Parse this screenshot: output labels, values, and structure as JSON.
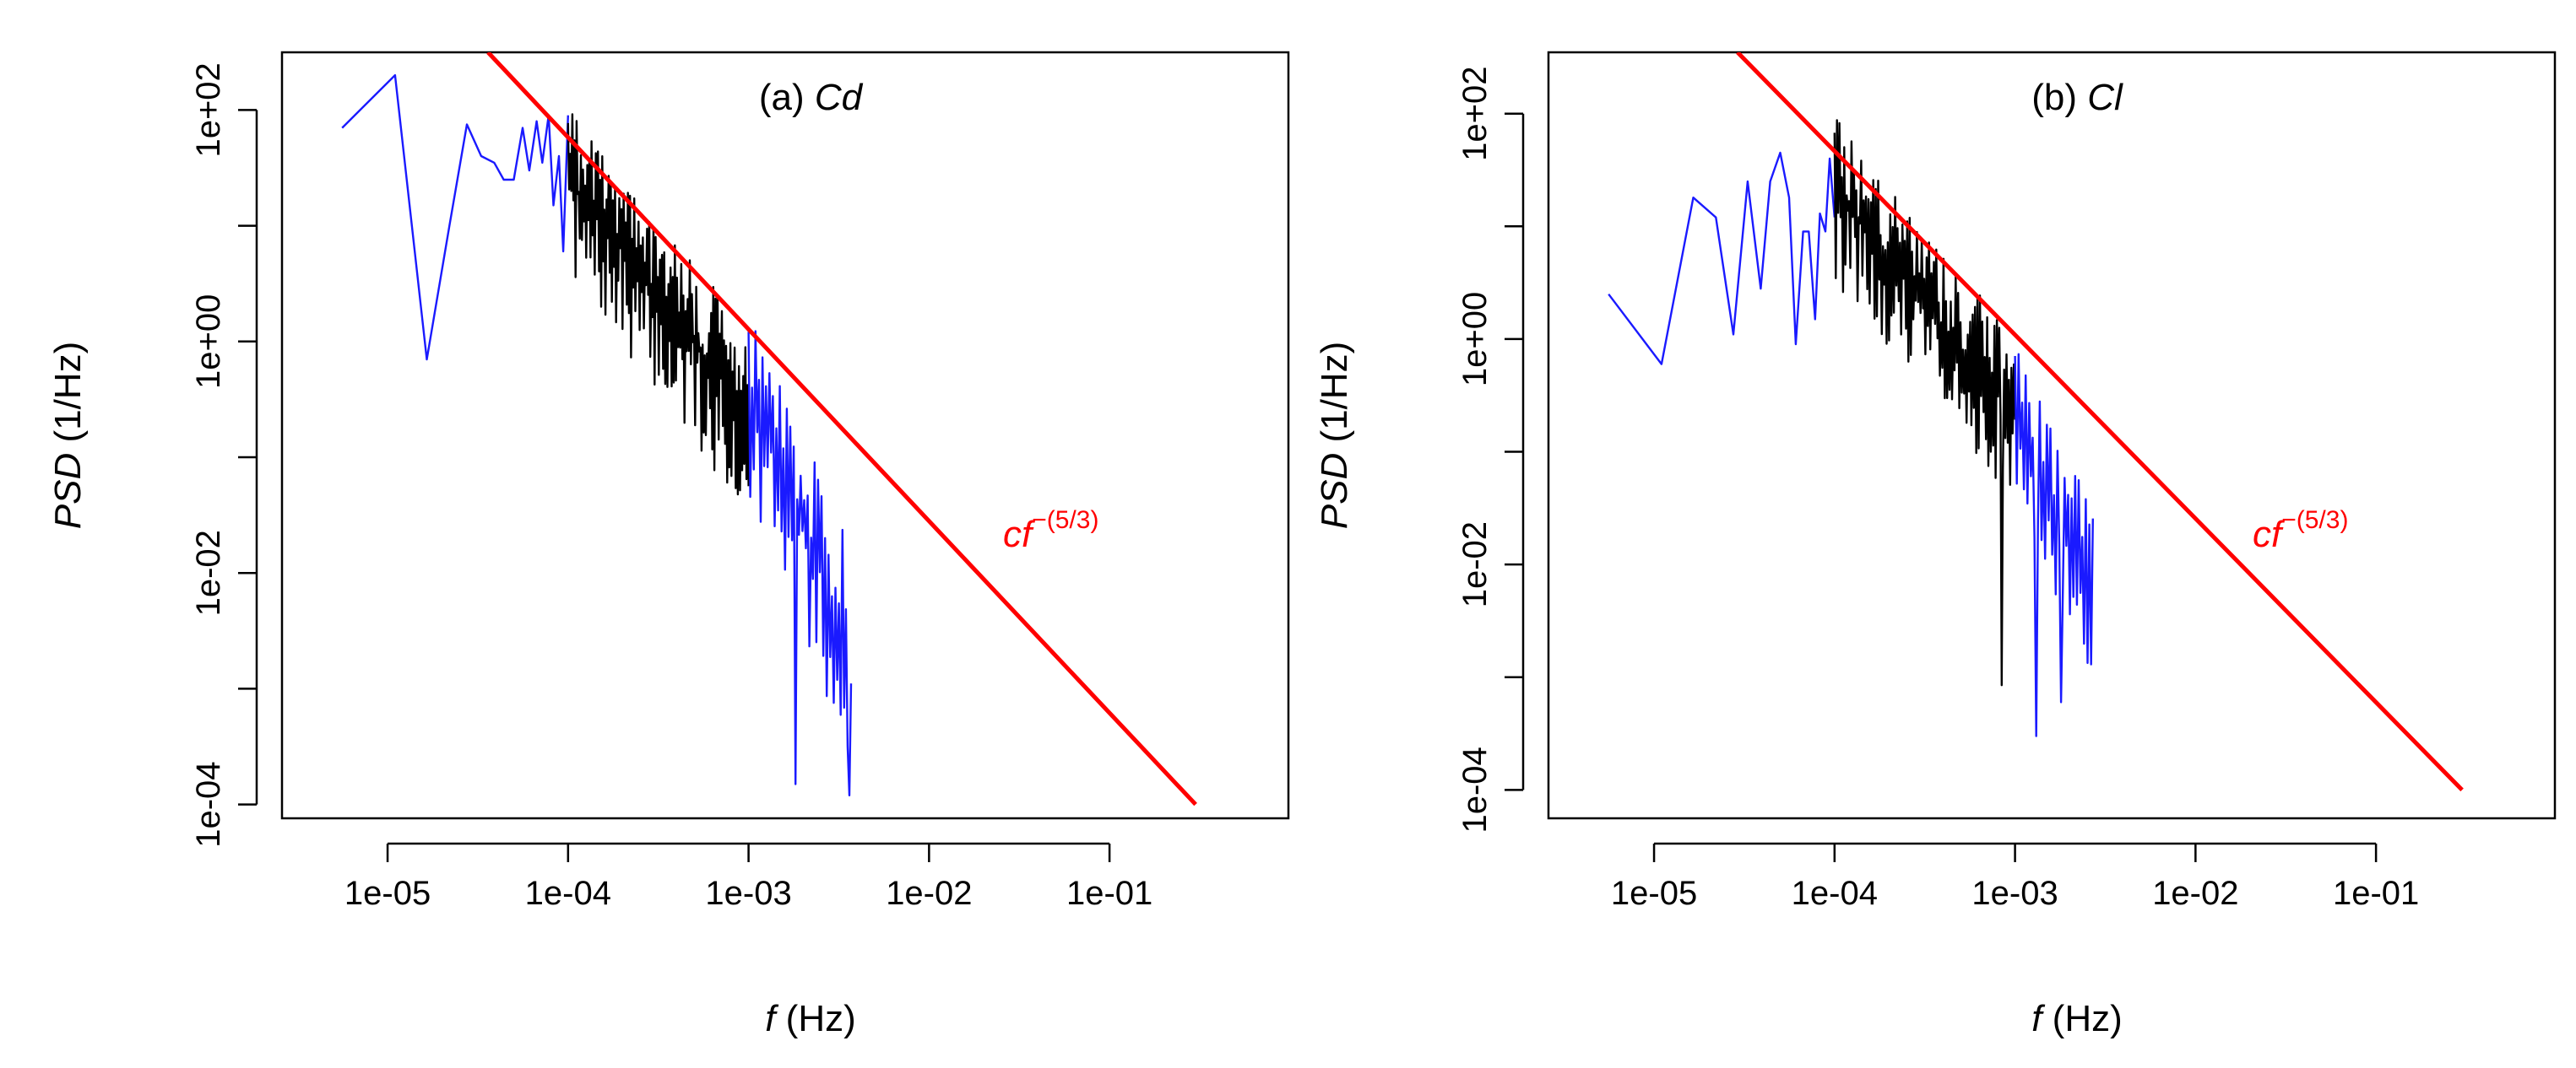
{
  "figure": {
    "panels": [
      "a",
      "b"
    ]
  },
  "chart_data": [
    {
      "id": "a",
      "type": "line",
      "scale": "log-log",
      "title_prefix": "(a) ",
      "title_var": "Cd",
      "xlabel_var": "f",
      "xlabel_unit": " (Hz)",
      "ylabel_var": "PSD",
      "ylabel_unit": " (1/Hz)",
      "xlim": [
        2.6e-06,
        0.98
      ],
      "ylim": [
        7.6e-05,
        315
      ],
      "x_ticks": [
        1e-05,
        0.0001,
        0.001,
        0.01,
        0.1
      ],
      "x_tick_labels": [
        "1e-05",
        "1e-04",
        "1e-03",
        "1e-02",
        "1e-01"
      ],
      "y_ticks": [
        0.0001,
        0.001,
        0.01,
        0.1,
        1,
        10,
        100
      ],
      "y_tick_labels": [
        "1e-04",
        "",
        "1e-02",
        "",
        "1e+00",
        "",
        "1e+02"
      ],
      "fit_label_base": "cf",
      "fit_label_exp": "−(5/3)",
      "fit_label_at": [
        0.03,
        0.025
      ],
      "colors": {
        "low": "#1a1aff",
        "mid": "#000000",
        "high": "#1a1aff",
        "fit": "#ff0000"
      },
      "series": [
        {
          "name": "low-frequency (blue)",
          "color": "#1a1aff",
          "x": [
            5.6e-06,
            1.1e-05,
            1.65e-05,
            2.2e-05,
            2.75e-05,
            3.3e-05,
            3.9e-05,
            4.4e-05,
            5e-05,
            5.6e-05,
            6.1e-05,
            6.7e-05,
            7.2e-05,
            7.8e-05,
            8.3e-05,
            8.9e-05,
            9.4e-05,
            0.0001
          ],
          "y": [
            70,
            200,
            0.7,
            10,
            75,
            40,
            35,
            25,
            25,
            70,
            30,
            80,
            35,
            90,
            15,
            40,
            6,
            90
          ]
        },
        {
          "name": "mid-frequency (black)",
          "color": "#000000",
          "x_start": 0.0001,
          "x_end": 0.001,
          "count": 170,
          "ymax": [
            110,
            1.3
          ],
          "ymin": [
            4,
            0.03
          ],
          "seed": 7
        },
        {
          "name": "high-frequency (blue)",
          "color": "#1a1aff",
          "x_start": 0.001,
          "x_end": 0.0037,
          "count": 60,
          "ymax": [
            1.8,
            0.02
          ],
          "ymin": [
            0.05,
            0.00015
          ],
          "seed": 19,
          "deep_dips": [
            [
              0.0018,
              0.00015
            ],
            [
              0.0036,
              0.00012
            ]
          ]
        },
        {
          "name": "cf^-(5/3) fit",
          "color": "#ff0000",
          "x": [
            3.6e-05,
            0.3
          ],
          "y": [
            315,
            0.0001
          ]
        }
      ]
    },
    {
      "id": "b",
      "type": "line",
      "scale": "log-log",
      "title_prefix": "(b) ",
      "title_var": "Cl",
      "xlabel_var": "f",
      "xlabel_unit": " (Hz)",
      "ylabel_var": "PSD",
      "ylabel_unit": " (1/Hz)",
      "xlim": [
        2.6e-06,
        0.98
      ],
      "ylim": [
        5.6e-05,
        350
      ],
      "x_ticks": [
        1e-05,
        0.0001,
        0.001,
        0.01,
        0.1
      ],
      "x_tick_labels": [
        "1e-05",
        "1e-04",
        "1e-03",
        "1e-02",
        "1e-01"
      ],
      "y_ticks": [
        0.0001,
        0.001,
        0.01,
        0.1,
        1,
        10,
        100
      ],
      "y_tick_labels": [
        "1e-04",
        "",
        "1e-02",
        "",
        "1e+00",
        "",
        "1e+02"
      ],
      "fit_label_base": "cf",
      "fit_label_exp": "−(5/3)",
      "fit_label_at": [
        0.03,
        0.025
      ],
      "colors": {
        "low": "#1a1aff",
        "mid": "#000000",
        "high": "#1a1aff",
        "fit": "#ff0000"
      },
      "series": [
        {
          "name": "low-frequency (blue)",
          "color": "#1a1aff",
          "x": [
            5.6e-06,
            1.1e-05,
            1.65e-05,
            2.2e-05,
            2.75e-05,
            3.3e-05,
            3.9e-05,
            4.4e-05,
            5e-05,
            5.6e-05,
            6.1e-05,
            6.7e-05,
            7.2e-05,
            7.8e-05,
            8.3e-05,
            8.9e-05,
            9.4e-05,
            0.0001
          ],
          "y": [
            2.5,
            0.6,
            18,
            12,
            1.1,
            25,
            2.8,
            25,
            45,
            18,
            0.9,
            9,
            9,
            1.5,
            13,
            9,
            40,
            12
          ]
        },
        {
          "name": "mid-frequency (black)",
          "color": "#000000",
          "x_start": 0.0001,
          "x_end": 0.001,
          "count": 150,
          "ymax": [
            100,
            1.0
          ],
          "ymin": [
            3,
            0.03
          ],
          "seed": 31,
          "deep_dips": [
            [
              0.00085,
              0.00085
            ]
          ]
        },
        {
          "name": "high-frequency (blue)",
          "color": "#1a1aff",
          "x_start": 0.001,
          "x_end": 0.0027,
          "count": 45,
          "ymax": [
            1.0,
            0.03
          ],
          "ymin": [
            0.05,
            0.0006
          ],
          "seed": 53,
          "deep_dips": [
            [
              0.0013,
              0.0003
            ],
            [
              0.0018,
              0.0006
            ]
          ]
        },
        {
          "name": "cf^-(5/3) fit",
          "color": "#ff0000",
          "x": [
            2.9e-05,
            0.3
          ],
          "y": [
            350,
            0.0001
          ]
        }
      ]
    }
  ]
}
